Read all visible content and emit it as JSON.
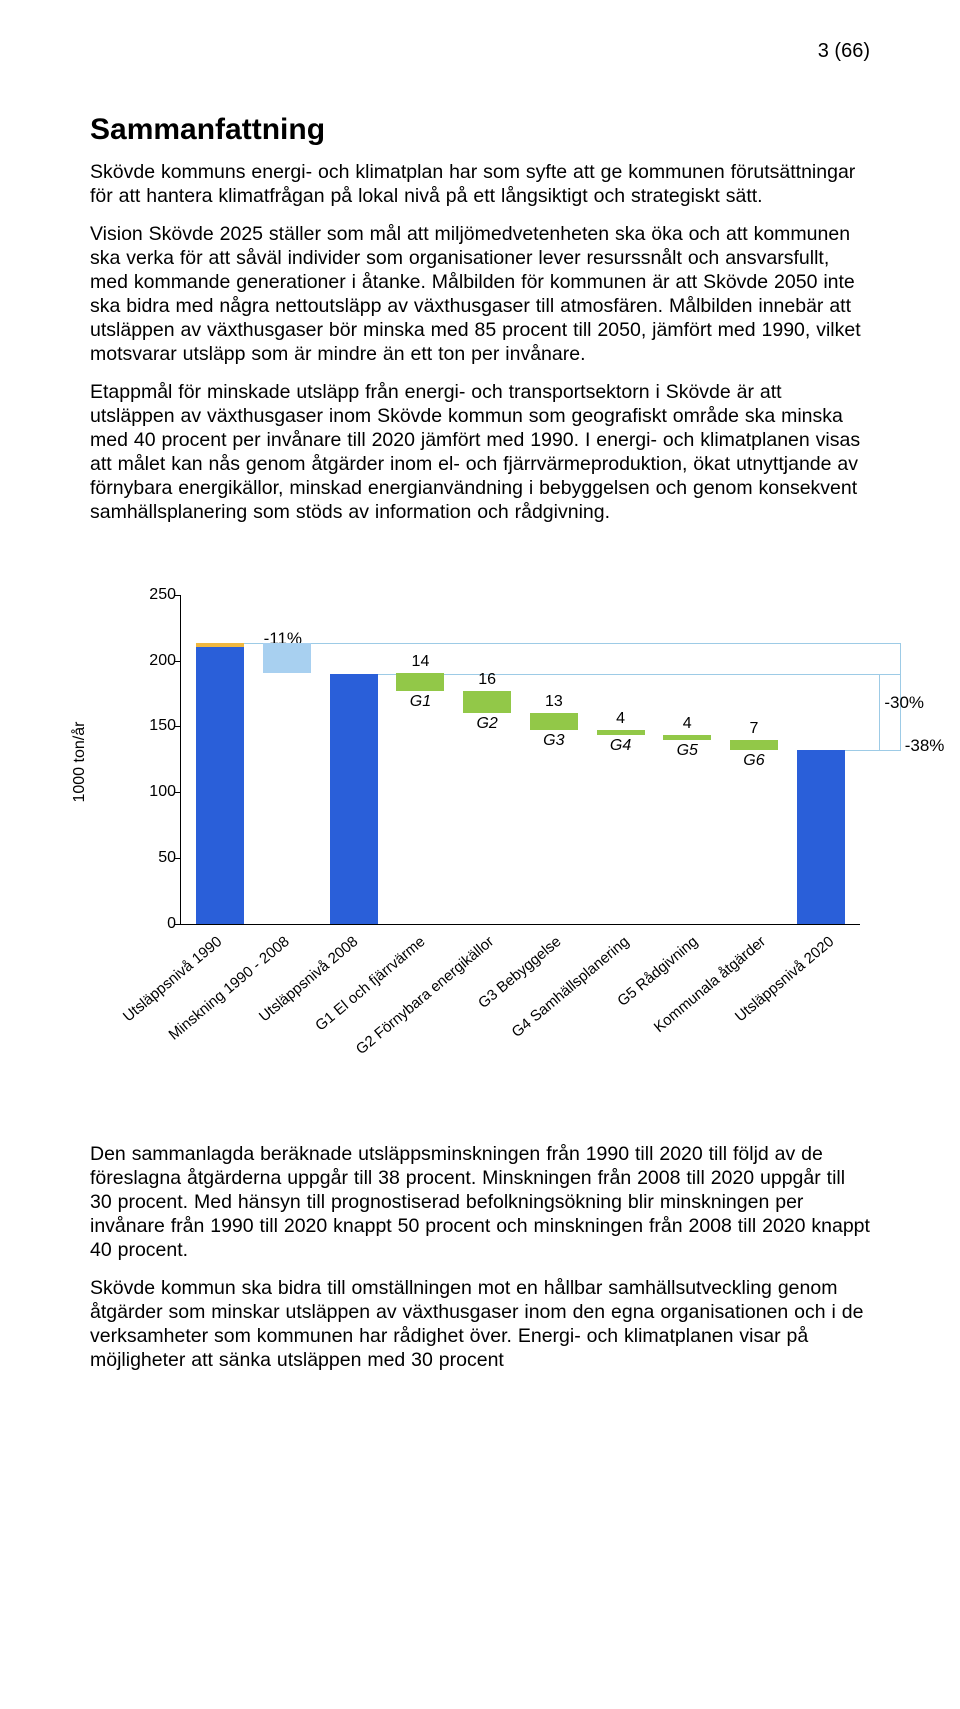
{
  "page_number": "3 (66)",
  "title": "Sammanfattning",
  "paragraphs": {
    "p1": "Skövde kommuns energi- och klimatplan har som syfte att ge kommunen förutsättningar för att hantera klimatfrågan på lokal nivå på ett långsiktigt och strategiskt sätt.",
    "p2": "Vision Skövde 2025 ställer som mål att miljömedvetenheten ska öka och att kommunen ska verka för att såväl individer som organisationer lever resurssnålt och ansvarsfullt, med kommande generationer i åtanke. Målbilden för kommunen är att Skövde 2050 inte ska bidra med några nettoutsläpp av växthusgaser till atmosfären. Målbilden innebär att utsläppen av växthusgaser bör minska med 85 procent till 2050, jämfört med 1990, vilket motsvarar utsläpp som är mindre än ett ton per invånare.",
    "p3": "Etappmål för minskade utsläpp från energi- och transportsektorn i Skövde är att utsläppen av växthusgaser inom Skövde kommun som geografiskt område ska minska med 40 procent per invånare till 2020 jämfört med 1990. I energi- och klimatplanen visas att målet kan nås genom åtgärder inom el- och fjärrvärmeproduktion, ökat utnyttjande av förnybara energikällor, minskad energianvändning i bebyggelsen och genom konsekvent samhällsplanering som stöds av information och rådgivning.",
    "p4": "Den sammanlagda beräknade utsläppsminskningen från 1990 till 2020 till följd av de föreslagna åtgärderna uppgår till 38 procent. Minskningen från 2008 till 2020 uppgår till 30 procent. Med hänsyn till prognostiserad befolkningsökning blir minskningen per invånare från 1990 till 2020 knappt 50 procent och minskningen från 2008 till 2020 knappt 40 procent.",
    "p5": "Skövde kommun ska bidra till omställningen mot en hållbar samhällsutveckling genom åtgärder som minskar utsläppen av växthusgaser inom den egna organisationen och i de verksamheter som kommunen har rådighet över. Energi- och klimatplanen visar på möjligheter att sänka utsläppen med 30 procent"
  },
  "chart": {
    "type": "bar",
    "y_axis_label": "1000 ton/år",
    "ylim_max": 250,
    "ytick_step": 50,
    "yticks": [
      0,
      50,
      100,
      150,
      200,
      250
    ],
    "bars": [
      {
        "x_label": "Utsläppsnivå 1990",
        "value": 213,
        "color": "#2a5fd9",
        "top_cap_color": "#f0b840",
        "show_value": false
      },
      {
        "x_label": "Minskning 1990 - 2008",
        "value_bottom": 190,
        "value_top": 213,
        "color": "#a8d0f0",
        "floating": true,
        "show_value": false
      },
      {
        "x_label": "Utsläppsnivå 2008",
        "value": 190,
        "color": "#2a5fd9",
        "show_value": false
      },
      {
        "x_label": "G1 El och fjärrvärme",
        "value_bottom": 176,
        "value_top": 190,
        "color": "#92c848",
        "floating": true,
        "value_label": "14",
        "cat_label": "G1"
      },
      {
        "x_label": "G2 Förnybara energikällor",
        "value_bottom": 160,
        "value_top": 176,
        "color": "#92c848",
        "floating": true,
        "value_label": "16",
        "cat_label": "G2"
      },
      {
        "x_label": "G3 Bebyggelse",
        "value_bottom": 147,
        "value_top": 160,
        "color": "#92c848",
        "floating": true,
        "value_label": "13",
        "cat_label": "G3"
      },
      {
        "x_label": "G4 Samhällsplanering",
        "value_bottom": 143,
        "value_top": 147,
        "color": "#92c848",
        "floating": true,
        "value_label": "4",
        "cat_label": "G4"
      },
      {
        "x_label": "G5 Rådgivning",
        "value_bottom": 139,
        "value_top": 143,
        "color": "#92c848",
        "floating": true,
        "value_label": "4",
        "cat_label": "G5"
      },
      {
        "x_label": "Kommunala åtgärder",
        "value_bottom": 132,
        "value_top": 139,
        "color": "#92c848",
        "floating": true,
        "value_label": "7",
        "cat_label": "G6"
      },
      {
        "x_label": "Utsläppsnivå 2020",
        "value": 132,
        "color": "#2a5fd9",
        "show_value": false
      }
    ],
    "percent_11": "-11%",
    "percent_30": "-30%",
    "percent_38": "-38%",
    "ref_lines": {
      "line_1990": 213,
      "line_2008": 190,
      "line_2020": 132
    }
  }
}
